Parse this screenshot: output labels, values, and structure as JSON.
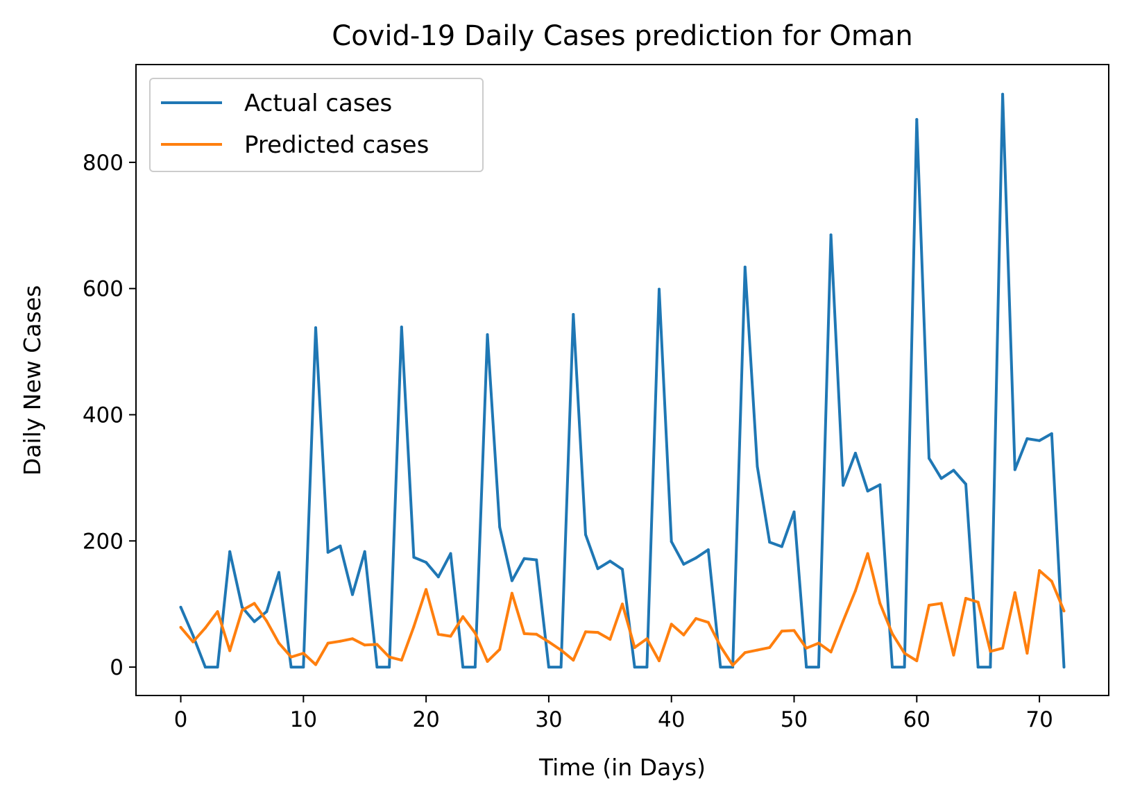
{
  "chart_data": {
    "type": "line",
    "title": "Covid-19 Daily Cases prediction for Oman",
    "xlabel": "Time (in Days)",
    "ylabel": "Daily New Cases",
    "xlim": [
      -3.65,
      75.65
    ],
    "ylim": [
      -45,
      955
    ],
    "xticks": [
      0,
      10,
      20,
      30,
      40,
      50,
      60,
      70
    ],
    "yticks": [
      0,
      200,
      400,
      600,
      800
    ],
    "grid": false,
    "legend": "upper-left",
    "series": [
      {
        "name": "Actual cases",
        "color": "#1f77b4",
        "values": [
          95,
          50,
          0,
          0,
          183,
          95,
          72,
          88,
          150,
          0,
          0,
          538,
          182,
          192,
          115,
          183,
          0,
          0,
          539,
          174,
          166,
          143,
          180,
          0,
          0,
          527,
          222,
          137,
          172,
          170,
          0,
          0,
          559,
          210,
          156,
          168,
          155,
          0,
          0,
          599,
          199,
          163,
          173,
          186,
          0,
          0,
          634,
          318,
          198,
          191,
          246,
          0,
          0,
          685,
          288,
          339,
          279,
          289,
          0,
          0,
          868,
          331,
          299,
          312,
          290,
          0,
          0,
          908,
          313,
          362,
          359,
          370,
          0
        ]
      },
      {
        "name": "Predicted cases",
        "color": "#ff7f0e",
        "values": [
          63,
          40,
          62,
          88,
          26,
          90,
          101,
          73,
          38,
          16,
          22,
          4,
          38,
          41,
          45,
          35,
          36,
          16,
          11,
          64,
          123,
          52,
          49,
          80,
          54,
          9,
          28,
          117,
          53,
          52,
          40,
          27,
          11,
          56,
          55,
          44,
          100,
          31,
          45,
          10,
          68,
          51,
          77,
          71,
          33,
          3,
          23,
          27,
          31,
          57,
          58,
          30,
          38,
          24,
          73,
          121,
          180,
          101,
          53,
          22,
          10,
          98,
          101,
          19,
          109,
          103,
          25,
          30,
          118,
          22,
          153,
          136,
          89
        ]
      }
    ]
  }
}
